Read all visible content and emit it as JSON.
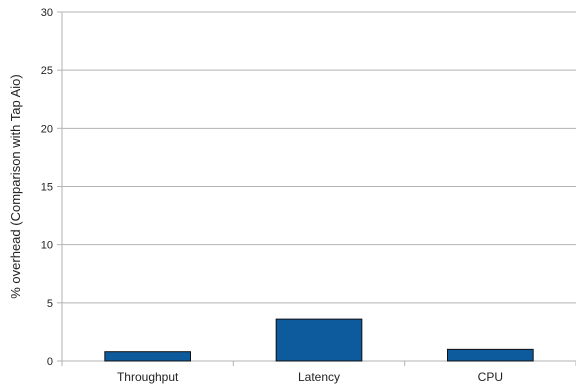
{
  "chart_data": {
    "type": "bar",
    "title": "",
    "xlabel": "",
    "ylabel": "% overhead (Comparison with Tap Aio)",
    "categories": [
      "Throughput",
      "Latency",
      "CPU"
    ],
    "values": [
      0.8,
      3.6,
      1.0
    ],
    "ylim": [
      0,
      30
    ],
    "yticks": [
      0,
      5,
      10,
      15,
      20,
      25,
      30
    ],
    "grid": true,
    "legend": "none",
    "colors": {
      "bar_fill": "#0d5a9c",
      "bar_stroke": "#111111",
      "grid": "#b3b3b3",
      "axis": "#b3b3b3"
    }
  }
}
